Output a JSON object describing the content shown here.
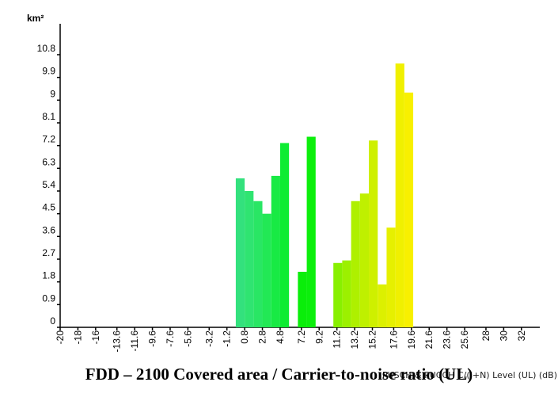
{
  "title": "FDD – 2100 Covered area / Carrier-to-noise ratio (UL)",
  "chart_data": {
    "type": "bar",
    "title": "FDD – 2100 Covered area / Carrier-to-noise ratio (UL)",
    "ylabel": "km²",
    "xlabel": "PUSCH & PUCCH C/(I+N) Level (UL) (dB)",
    "ylim": [
      0,
      10.8
    ],
    "xlim": [
      -20,
      33
    ],
    "grid": false,
    "y_ticks": [
      "0",
      "0.9",
      "1.8",
      "2.7",
      "3.6",
      "4.5",
      "5.4",
      "6.3",
      "7.2",
      "8.1",
      "9",
      "9.9",
      "10.8"
    ],
    "x_ticks": [
      "-20",
      "-18",
      "-16",
      "-13.6",
      "-11.6",
      "-9.6",
      "-7.6",
      "-5.6",
      "-3.2",
      "-1.2",
      "0.8",
      "2.8",
      "4.8",
      "7.2",
      "9.2",
      "11.2",
      "13.2",
      "15.2",
      "17.6",
      "19.6",
      "21.6",
      "23.6",
      "25.6",
      "28",
      "30",
      "32"
    ],
    "bar_width_db": 1,
    "bars": [
      {
        "x": -0.2,
        "value": 5.9,
        "color": "#33e17d"
      },
      {
        "x": 0.8,
        "value": 5.4,
        "color": "#2fe471"
      },
      {
        "x": 1.8,
        "value": 5.0,
        "color": "#29e664"
      },
      {
        "x": 2.8,
        "value": 4.5,
        "color": "#22e855"
      },
      {
        "x": 3.8,
        "value": 6.0,
        "color": "#18ea44"
      },
      {
        "x": 4.8,
        "value": 7.3,
        "color": "#0eec32"
      },
      {
        "x": 6.8,
        "value": 2.2,
        "color": "#0aee0a"
      },
      {
        "x": 7.8,
        "value": 7.55,
        "color": "#0cef0c"
      },
      {
        "x": 10.8,
        "value": 2.55,
        "color": "#88f000"
      },
      {
        "x": 11.8,
        "value": 2.65,
        "color": "#9cf000"
      },
      {
        "x": 12.8,
        "value": 5.0,
        "color": "#aef000"
      },
      {
        "x": 13.8,
        "value": 5.3,
        "color": "#bff000"
      },
      {
        "x": 14.8,
        "value": 7.4,
        "color": "#cef000"
      },
      {
        "x": 15.8,
        "value": 1.7,
        "color": "#dcf000"
      },
      {
        "x": 16.8,
        "value": 3.95,
        "color": "#e6f000"
      },
      {
        "x": 17.8,
        "value": 10.45,
        "color": "#f0f000"
      },
      {
        "x": 18.8,
        "value": 9.3,
        "color": "#f8f000"
      }
    ]
  }
}
